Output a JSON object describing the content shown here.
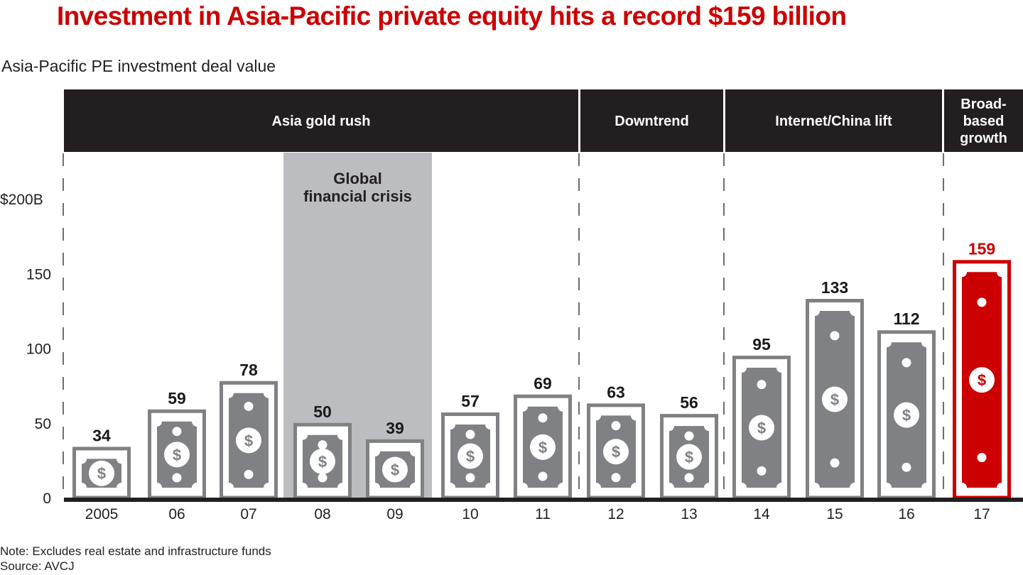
{
  "title": "Investment in Asia-Pacific private equity hits a record $159 billion",
  "subtitle": "Asia-Pacific PE investment deal value",
  "notes": {
    "note": "Note: Excludes real estate and infrastructure funds",
    "source": "Source: AVCJ"
  },
  "colors": {
    "title": "#cc0000",
    "bar_gray": "#808184",
    "bar_highlight": "#cc0000",
    "period_band": "#231f20",
    "crisis_shade": "#bcbdc0",
    "axis": "#231f20"
  },
  "chart_data": {
    "type": "bar",
    "title": "Investment in Asia-Pacific private equity hits a record $159 billion",
    "subtitle": "Asia-Pacific PE investment deal value",
    "xlabel": "",
    "ylabel": "",
    "categories": [
      "2005",
      "06",
      "07",
      "08",
      "09",
      "10",
      "11",
      "12",
      "13",
      "14",
      "15",
      "16",
      "17"
    ],
    "values": [
      34,
      59,
      78,
      50,
      39,
      57,
      69,
      63,
      56,
      95,
      133,
      112,
      159
    ],
    "unit": "$B",
    "ylim": [
      0,
      200
    ],
    "yticks": [
      0,
      50,
      100,
      150,
      200
    ],
    "ytick_labels": [
      "0",
      "50",
      "100",
      "150",
      "$200B"
    ],
    "grid": false,
    "highlight_index": 12,
    "periods": [
      {
        "label": "Asia gold rush",
        "from": "2005",
        "to": "11"
      },
      {
        "label": "Downtrend",
        "from": "12",
        "to": "13"
      },
      {
        "label": "Internet/China lift",
        "from": "14",
        "to": "16"
      },
      {
        "label": "Broad-based growth",
        "from": "17",
        "to": "17"
      }
    ],
    "annotations": [
      {
        "label": "Global financial crisis",
        "from": "08",
        "to": "09",
        "type": "shaded-region"
      }
    ],
    "legend": null
  }
}
